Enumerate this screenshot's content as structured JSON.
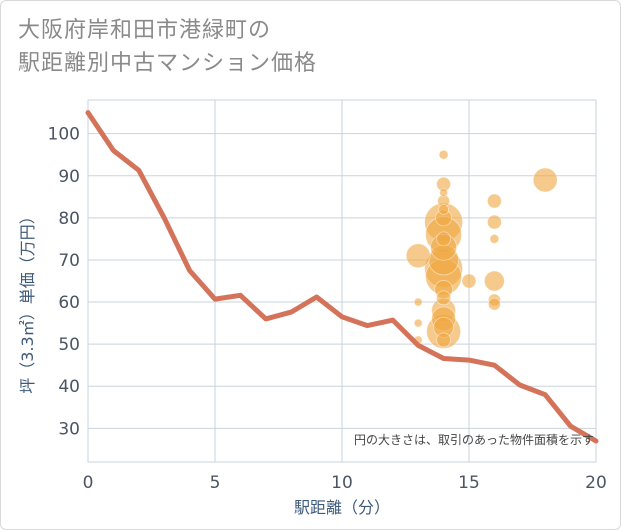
{
  "header": {
    "title_line1": "大阪府岸和田市港緑町の",
    "title_line2": "駅距離別中古マンション価格"
  },
  "colors": {
    "line": "#d4735a",
    "bubble": "#f0a640",
    "grid": "#c9d3dd",
    "axis_text": "#3d5a7a"
  },
  "chart_data": {
    "type": "scatter",
    "title": "大阪府岸和田市港緑町の駅距離別中古マンション価格",
    "xlabel": "駅距離（分）",
    "ylabel": "坪（3.3㎡）単価（万円）",
    "xlim": [
      0,
      20
    ],
    "ylim": [
      22,
      108
    ],
    "x_ticks": [
      0,
      5,
      10,
      15,
      20
    ],
    "y_ticks": [
      30,
      40,
      50,
      60,
      70,
      80,
      90,
      100
    ],
    "x_tick_labels": [
      "0",
      "5",
      "10",
      "15",
      "20"
    ],
    "y_tick_labels": [
      "30",
      "40",
      "50",
      "60",
      "70",
      "80",
      "90",
      "100"
    ],
    "note": "円の大きさは、取引のあった物件面積を示す",
    "series": [
      {
        "name": "line",
        "type": "line",
        "x": [
          0,
          1,
          2,
          3,
          4,
          5,
          6,
          7,
          8,
          9,
          10,
          11,
          12,
          13,
          14,
          15,
          16,
          17,
          18,
          19,
          20
        ],
        "y": [
          105,
          96,
          91.3,
          80,
          67.5,
          60.7,
          61.6,
          56,
          57.6,
          61.2,
          56.5,
          54.4,
          55.7,
          49.7,
          46.6,
          46.2,
          45,
          40.3,
          38,
          30.5,
          27
        ]
      },
      {
        "name": "bubbles",
        "type": "bubble",
        "points": [
          {
            "x": 13,
            "y": 71,
            "s": 12
          },
          {
            "x": 13,
            "y": 60,
            "s": 4
          },
          {
            "x": 13,
            "y": 55,
            "s": 4
          },
          {
            "x": 13,
            "y": 51,
            "s": 4
          },
          {
            "x": 14,
            "y": 95,
            "s": 4.5
          },
          {
            "x": 14,
            "y": 88,
            "s": 7
          },
          {
            "x": 14,
            "y": 86,
            "s": 4
          },
          {
            "x": 14,
            "y": 84,
            "s": 6
          },
          {
            "x": 14,
            "y": 82,
            "s": 5
          },
          {
            "x": 14,
            "y": 80,
            "s": 8
          },
          {
            "x": 14,
            "y": 79,
            "s": 19
          },
          {
            "x": 14,
            "y": 76,
            "s": 18
          },
          {
            "x": 14,
            "y": 75,
            "s": 7
          },
          {
            "x": 14,
            "y": 73,
            "s": 13
          },
          {
            "x": 14,
            "y": 70,
            "s": 15
          },
          {
            "x": 14,
            "y": 68,
            "s": 19
          },
          {
            "x": 14,
            "y": 66,
            "s": 18
          },
          {
            "x": 14,
            "y": 63,
            "s": 9
          },
          {
            "x": 14,
            "y": 61,
            "s": 7
          },
          {
            "x": 14,
            "y": 58,
            "s": 12
          },
          {
            "x": 14,
            "y": 56,
            "s": 12
          },
          {
            "x": 14,
            "y": 54,
            "s": 10
          },
          {
            "x": 14,
            "y": 53,
            "s": 17
          },
          {
            "x": 14,
            "y": 51,
            "s": 7
          },
          {
            "x": 15,
            "y": 65,
            "s": 7
          },
          {
            "x": 16,
            "y": 84,
            "s": 7
          },
          {
            "x": 16,
            "y": 79,
            "s": 7
          },
          {
            "x": 16,
            "y": 75,
            "s": 4.5
          },
          {
            "x": 16,
            "y": 65,
            "s": 10
          },
          {
            "x": 16,
            "y": 60.5,
            "s": 6
          },
          {
            "x": 16,
            "y": 59.5,
            "s": 6
          },
          {
            "x": 18,
            "y": 89,
            "s": 12
          }
        ]
      }
    ]
  }
}
